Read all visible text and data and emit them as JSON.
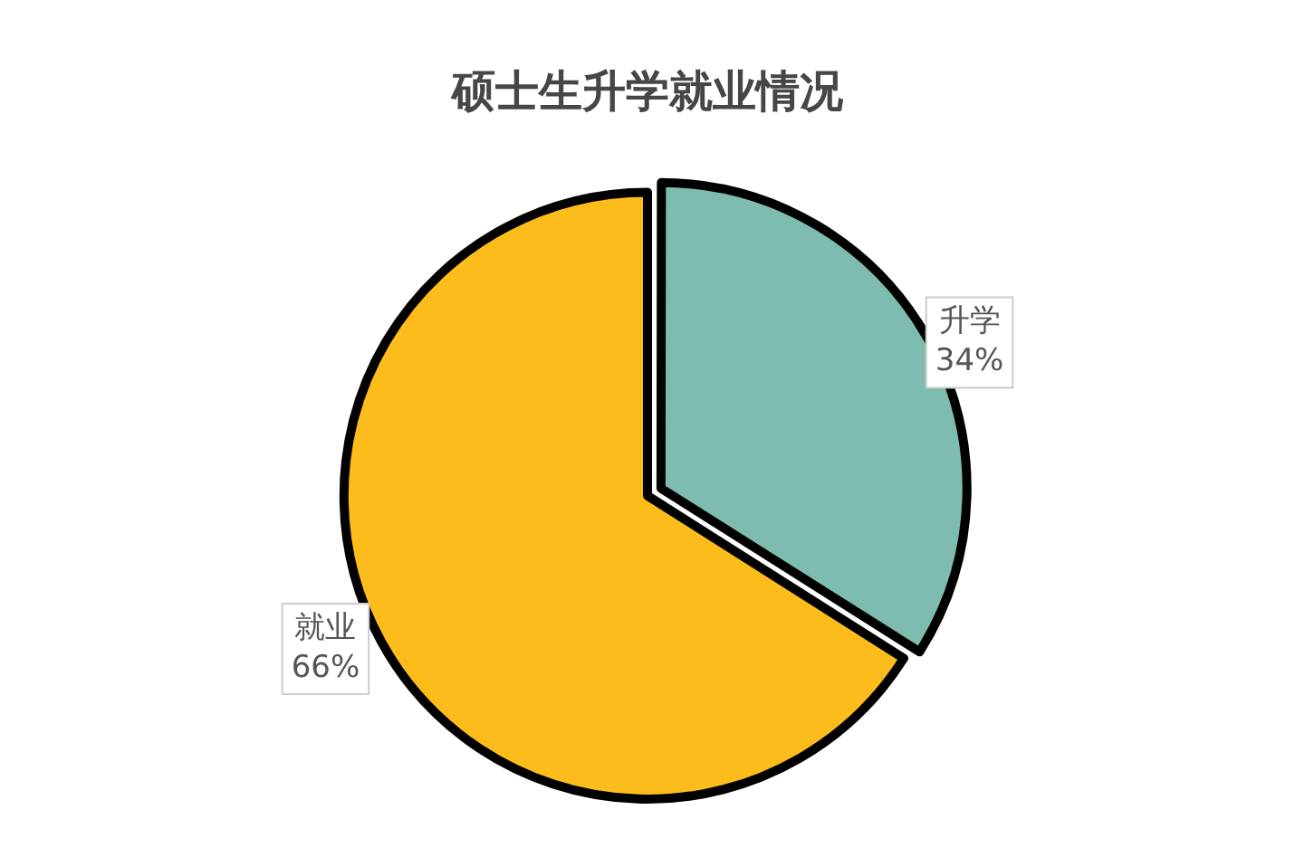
{
  "chart_data": {
    "type": "pie",
    "title": "硕士生升学就业情况",
    "categories": [
      "升学",
      "就业"
    ],
    "values": [
      34,
      66
    ],
    "value_labels": [
      "34%",
      "66%"
    ],
    "colors": [
      "#7dbcae",
      "#fbbc1c"
    ],
    "legend": false
  }
}
